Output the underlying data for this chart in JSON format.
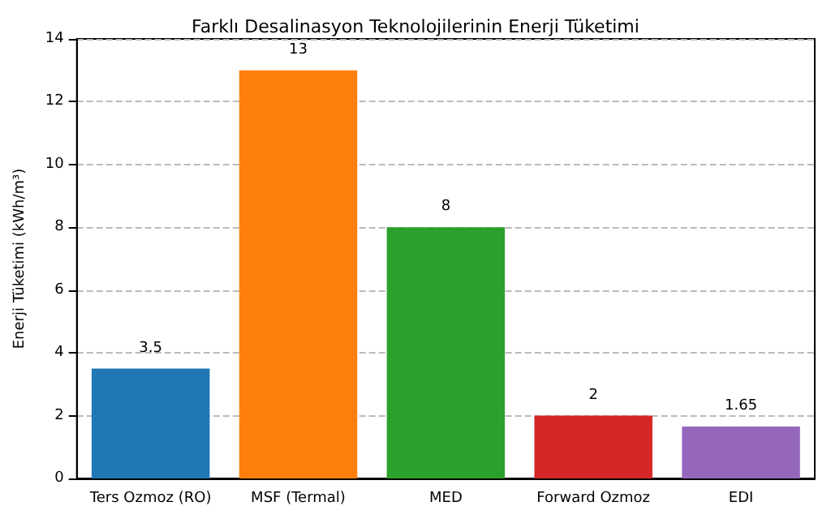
{
  "chart_data": {
    "type": "bar",
    "title": "Farklı Desalinasyon Teknolojilerinin Enerji Tüketimi",
    "ylabel": "Enerji Tüketimi (kWh/m³)",
    "categories": [
      "Ters Ozmoz (RO)",
      "MSF (Termal)",
      "MED",
      "Forward Ozmoz",
      "EDI"
    ],
    "values": [
      3.5,
      13,
      8,
      2,
      1.65
    ],
    "colors": [
      "#1f77b4",
      "#ff7f0e",
      "#2ca02c",
      "#d62728",
      "#9467bd"
    ],
    "ylim": [
      0,
      14
    ],
    "yticks": [
      0,
      2,
      4,
      6,
      8,
      10,
      12,
      14
    ],
    "grid": "y",
    "data_labels": true
  }
}
